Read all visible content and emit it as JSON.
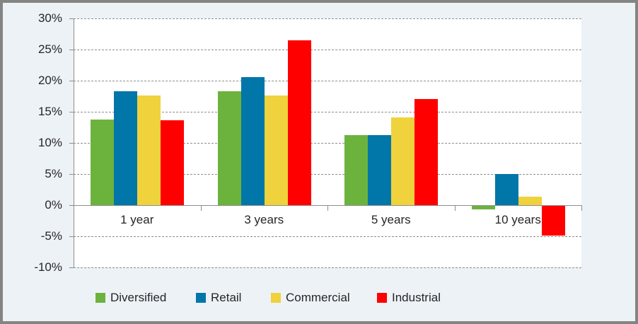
{
  "chart_data": {
    "type": "bar",
    "title": "",
    "xlabel": "",
    "ylabel": "",
    "categories": [
      "1 year",
      "3 years",
      "5 years",
      "10 years"
    ],
    "series": [
      {
        "name": "Diversified",
        "color": "#6CB33E",
        "values": [
          13.7,
          18.3,
          11.3,
          -0.6
        ]
      },
      {
        "name": "Retail",
        "color": "#0076A9",
        "values": [
          18.3,
          20.6,
          11.2,
          5.0
        ]
      },
      {
        "name": "Commercial",
        "color": "#EFD23C",
        "values": [
          17.6,
          17.6,
          14.1,
          1.4
        ]
      },
      {
        "name": "Industrial",
        "color": "#FF0000",
        "values": [
          13.6,
          26.5,
          17.0,
          -4.8
        ]
      }
    ],
    "ylim": [
      -10,
      30
    ],
    "ytick_step": 5,
    "ytick_suffix": "%",
    "ytick_labels": [
      "30%",
      "25%",
      "20%",
      "15%",
      "10%",
      "5%",
      "0%",
      "-5%",
      "-10%"
    ],
    "grid": "horizontal-dashed",
    "legend_position": "bottom"
  },
  "style": {
    "background": "#EDF2F7",
    "plot_background": "#FFFFFF",
    "frame_border": "#848484",
    "grid_color": "#8E8E8E",
    "axis_color": "#8E8E8E",
    "text_color": "#262626"
  }
}
